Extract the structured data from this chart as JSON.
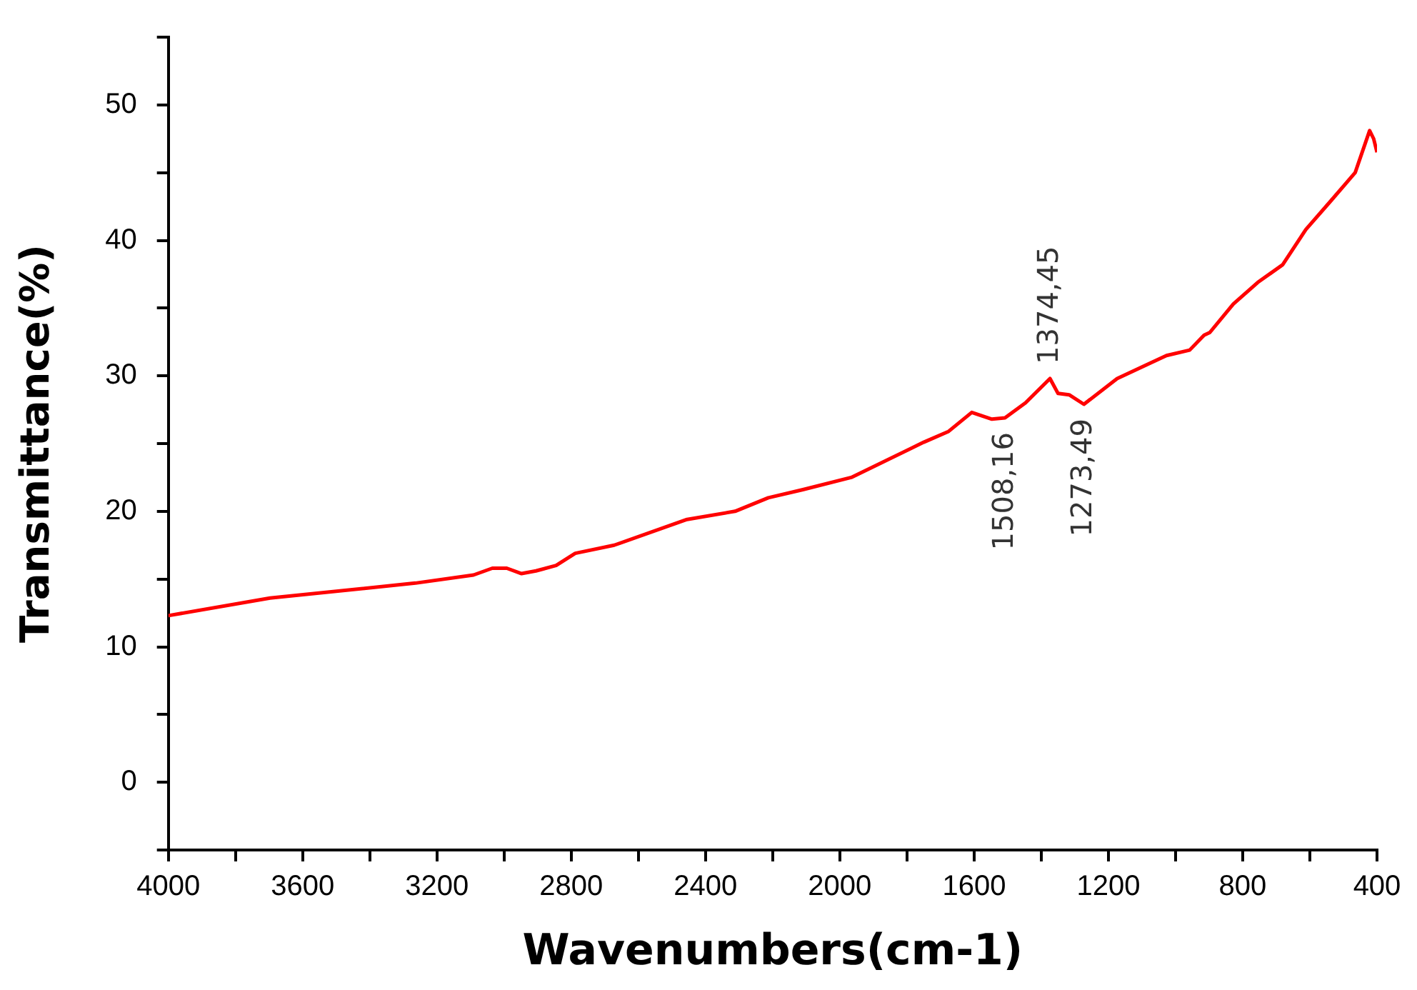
{
  "chart_data": {
    "type": "line",
    "xlabel": "Wavenumbers(cm-1)",
    "ylabel": "Transmittance(%)",
    "x": [
      4000,
      3697,
      3264,
      3091,
      3035,
      2992,
      2948,
      2905,
      2845,
      2788,
      2672,
      2455,
      2312,
      2213,
      2110,
      1966,
      1750,
      1676,
      1607,
      1547,
      1508,
      1447,
      1374,
      1350,
      1317,
      1273,
      1174,
      1027,
      958,
      915,
      898,
      828,
      755,
      681,
      612,
      538,
      465,
      422,
      410,
      400
    ],
    "series": [
      {
        "color": "#ff0000",
        "values": [
          12.3,
          13.6,
          14.7,
          15.3,
          15.8,
          15.8,
          15.4,
          15.6,
          16.0,
          16.9,
          17.5,
          19.4,
          20.0,
          21.0,
          21.6,
          22.5,
          25.1,
          25.9,
          27.3,
          26.8,
          26.9,
          28.0,
          29.8,
          28.7,
          28.6,
          27.9,
          29.8,
          31.5,
          31.9,
          33.0,
          33.2,
          35.3,
          36.9,
          38.2,
          40.8,
          42.9,
          45.0,
          48.1,
          47.5,
          46.5
        ]
      }
    ],
    "xlim": [
      4000,
      400
    ],
    "xticks": [
      4000,
      {
        "value": 3800,
        "label": null
      },
      3600,
      {
        "value": 3400,
        "label": null
      },
      3200,
      {
        "value": 3000,
        "label": null
      },
      2800,
      {
        "value": 2600,
        "label": null
      },
      2400,
      {
        "value": 2200,
        "label": null
      },
      2000,
      {
        "value": 1800,
        "label": null
      },
      1600,
      {
        "value": 1400,
        "label": null
      },
      1200,
      {
        "value": 1000,
        "label": null
      },
      800,
      {
        "value": 600,
        "label": null
      },
      400
    ],
    "ylim": [
      -5,
      55
    ],
    "yticks": [
      {
        "value": -5,
        "label": null
      },
      0,
      {
        "value": 5,
        "label": null
      },
      10,
      {
        "value": 15,
        "label": null
      },
      20,
      {
        "value": 25,
        "label": null
      },
      30,
      {
        "value": 35,
        "label": null
      },
      40,
      {
        "value": 45,
        "label": null
      },
      50,
      {
        "value": 55,
        "label": null
      }
    ],
    "annotations": [
      {
        "text": "1374,45",
        "x": 1374,
        "y": 29.8
      },
      {
        "text": "1508,16",
        "x": 1508,
        "y": 26.9
      },
      {
        "text": "1273,49",
        "x": 1273,
        "y": 27.9
      }
    ],
    "grid": false,
    "legend": false,
    "marker": "none",
    "line_style": "solid"
  }
}
